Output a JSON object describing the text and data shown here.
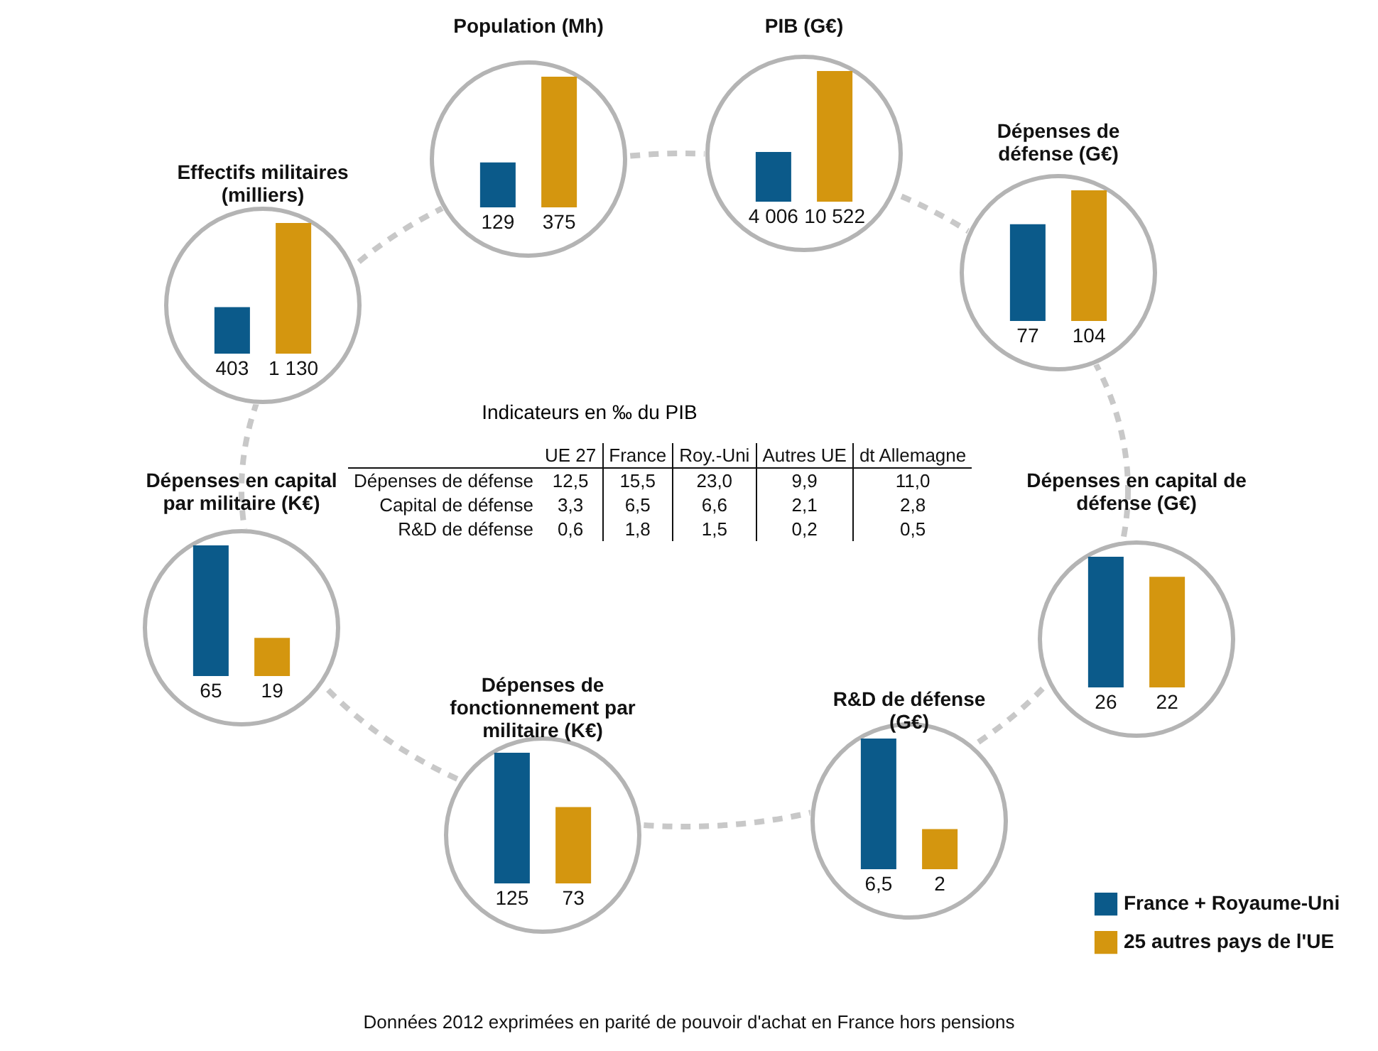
{
  "chart_data": [
    {
      "type": "bar",
      "title": "Population (Mh)",
      "categories": [
        null,
        null
      ],
      "values": [
        129,
        375
      ],
      "colors": [
        "#0b5a8a",
        "#d4960f"
      ],
      "value_labels": [
        "129",
        "375"
      ]
    },
    {
      "type": "bar",
      "title": "PIB (G€)",
      "categories": [
        null,
        null
      ],
      "values": [
        4006,
        10522
      ],
      "colors": [
        "#0b5a8a",
        "#d4960f"
      ],
      "value_labels": [
        "4 006",
        "10 522"
      ]
    },
    {
      "type": "bar",
      "title": "Effectifs militaires (milliers)",
      "categories": [
        null,
        null
      ],
      "values": [
        403,
        1130
      ],
      "colors": [
        "#0b5a8a",
        "#d4960f"
      ],
      "value_labels": [
        "403",
        "1 130"
      ]
    },
    {
      "type": "bar",
      "title": "Dépenses de défense (G€)",
      "categories": [
        null,
        null
      ],
      "values": [
        77,
        104
      ],
      "colors": [
        "#0b5a8a",
        "#d4960f"
      ],
      "value_labels": [
        "77",
        "104"
      ]
    },
    {
      "type": "other",
      "title": "Indicateurs en ‰ du PIB",
      "categories": [
        "UE 27",
        "France",
        "Roy.-Uni",
        "Autres UE",
        "dt Allemagne"
      ],
      "y_categories": [
        "Dépenses de défense",
        "Capital de défense",
        "R&D de défense"
      ],
      "cells": [
        [
          "12,5",
          "15,5",
          "23,0",
          "9,9",
          "11,0"
        ],
        [
          "3,3",
          "6,5",
          "6,6",
          "2,1",
          "2,8"
        ],
        [
          "0,6",
          "1,8",
          "1,5",
          "0,2",
          "0,5"
        ]
      ],
      "annotations": [
        "Données 2012 exprimées en parité de pouvoir d'achat en France hors pensions"
      ]
    },
    {
      "type": "bar",
      "title": "Dépenses en capital par militaire (K€)",
      "categories": [
        null,
        null
      ],
      "values": [
        65,
        19
      ],
      "colors": [
        "#0b5a8a",
        "#d4960f"
      ],
      "value_labels": [
        "65",
        "19"
      ]
    },
    {
      "type": "bar",
      "title": "Dépenses en capital de défense (G€)",
      "categories": [
        null,
        null
      ],
      "values": [
        26,
        22
      ],
      "colors": [
        "#0b5a8a",
        "#d4960f"
      ],
      "value_labels": [
        "26",
        "22"
      ]
    },
    {
      "type": "bar",
      "title": "Dépenses de fonctionnement par militaire (K€)",
      "categories": [
        null,
        null
      ],
      "values": [
        125,
        73
      ],
      "colors": [
        "#0b5a8a",
        "#d4960f"
      ],
      "value_labels": [
        "125",
        "73"
      ]
    },
    {
      "type": "bar",
      "title": "R&D de défense (G€)",
      "categories": [
        null
      ],
      "legend": "bottom right",
      "series": [
        {
          "name": "France + Royaume-Uni",
          "color": "#0b5a8a",
          "values": [
            6.5
          ],
          "value_labels": [
            "6,5"
          ]
        },
        {
          "name": "25 autres pays de l'UE",
          "color": "#d4960f",
          "values": [
            2
          ],
          "value_labels": [
            "2"
          ]
        }
      ]
    }
  ]
}
